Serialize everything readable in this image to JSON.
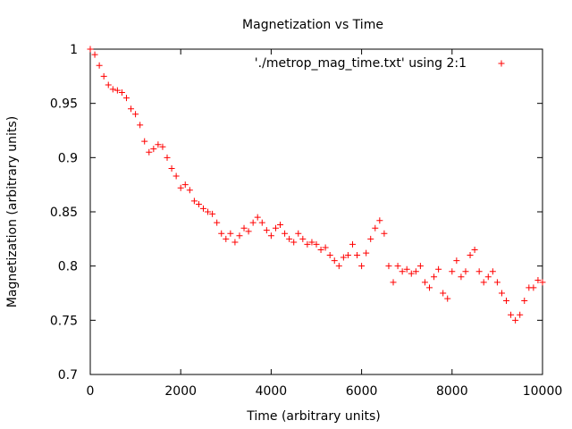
{
  "chart_data": {
    "type": "scatter",
    "title": "Magnetization vs Time",
    "xlabel": "Time (arbitrary units)",
    "ylabel": "Magnetization (arbitrary units)",
    "xlim": [
      0,
      10000
    ],
    "ylim": [
      0.7,
      1.0
    ],
    "x_ticks": [
      0,
      2000,
      4000,
      6000,
      8000,
      10000
    ],
    "x_tick_labels": [
      "0",
      "2000",
      "4000",
      "6000",
      "8000",
      "10000"
    ],
    "y_ticks": [
      0.7,
      0.75,
      0.8,
      0.85,
      0.9,
      0.95,
      1.0
    ],
    "y_tick_labels": [
      "0.7",
      "0.75",
      "0.8",
      "0.85",
      "0.9",
      "0.95",
      "1"
    ],
    "grid": false,
    "legend_position": "top-right",
    "marker": "plus",
    "series": [
      {
        "name": "'./metrop_mag_time.txt' using 2:1",
        "color": "#ff0000",
        "x": [
          0,
          100,
          200,
          300,
          400,
          500,
          600,
          700,
          800,
          900,
          1000,
          1100,
          1200,
          1300,
          1400,
          1500,
          1600,
          1700,
          1800,
          1900,
          2000,
          2100,
          2200,
          2300,
          2400,
          2500,
          2600,
          2700,
          2800,
          2900,
          3000,
          3100,
          3200,
          3300,
          3400,
          3500,
          3600,
          3700,
          3800,
          3900,
          4000,
          4100,
          4200,
          4300,
          4400,
          4500,
          4600,
          4700,
          4800,
          4900,
          5000,
          5100,
          5200,
          5300,
          5400,
          5500,
          5600,
          5700,
          5800,
          5900,
          6000,
          6100,
          6200,
          6300,
          6400,
          6500,
          6600,
          6700,
          6800,
          6900,
          7000,
          7100,
          7200,
          7300,
          7400,
          7500,
          7600,
          7700,
          7800,
          7900,
          8000,
          8100,
          8200,
          8300,
          8400,
          8500,
          8600,
          8700,
          8800,
          8900,
          9000,
          9100,
          9200,
          9300,
          9400,
          9500,
          9600,
          9700,
          9800,
          9900,
          10000
        ],
        "y": [
          1.0,
          0.995,
          0.985,
          0.975,
          0.967,
          0.963,
          0.962,
          0.96,
          0.955,
          0.945,
          0.94,
          0.93,
          0.915,
          0.905,
          0.908,
          0.912,
          0.91,
          0.9,
          0.89,
          0.883,
          0.872,
          0.875,
          0.87,
          0.86,
          0.857,
          0.853,
          0.85,
          0.848,
          0.84,
          0.83,
          0.825,
          0.83,
          0.822,
          0.828,
          0.835,
          0.832,
          0.84,
          0.845,
          0.84,
          0.833,
          0.828,
          0.835,
          0.838,
          0.83,
          0.825,
          0.822,
          0.83,
          0.825,
          0.82,
          0.822,
          0.82,
          0.815,
          0.817,
          0.81,
          0.805,
          0.8,
          0.808,
          0.81,
          0.82,
          0.81,
          0.8,
          0.812,
          0.825,
          0.835,
          0.842,
          0.83,
          0.8,
          0.785,
          0.8,
          0.795,
          0.797,
          0.793,
          0.795,
          0.8,
          0.785,
          0.78,
          0.79,
          0.797,
          0.775,
          0.77,
          0.795,
          0.805,
          0.79,
          0.795,
          0.81,
          0.815,
          0.795,
          0.785,
          0.79,
          0.795,
          0.785,
          0.775,
          0.768,
          0.755,
          0.75,
          0.755,
          0.768,
          0.78,
          0.78,
          0.787,
          0.785
        ]
      }
    ]
  }
}
